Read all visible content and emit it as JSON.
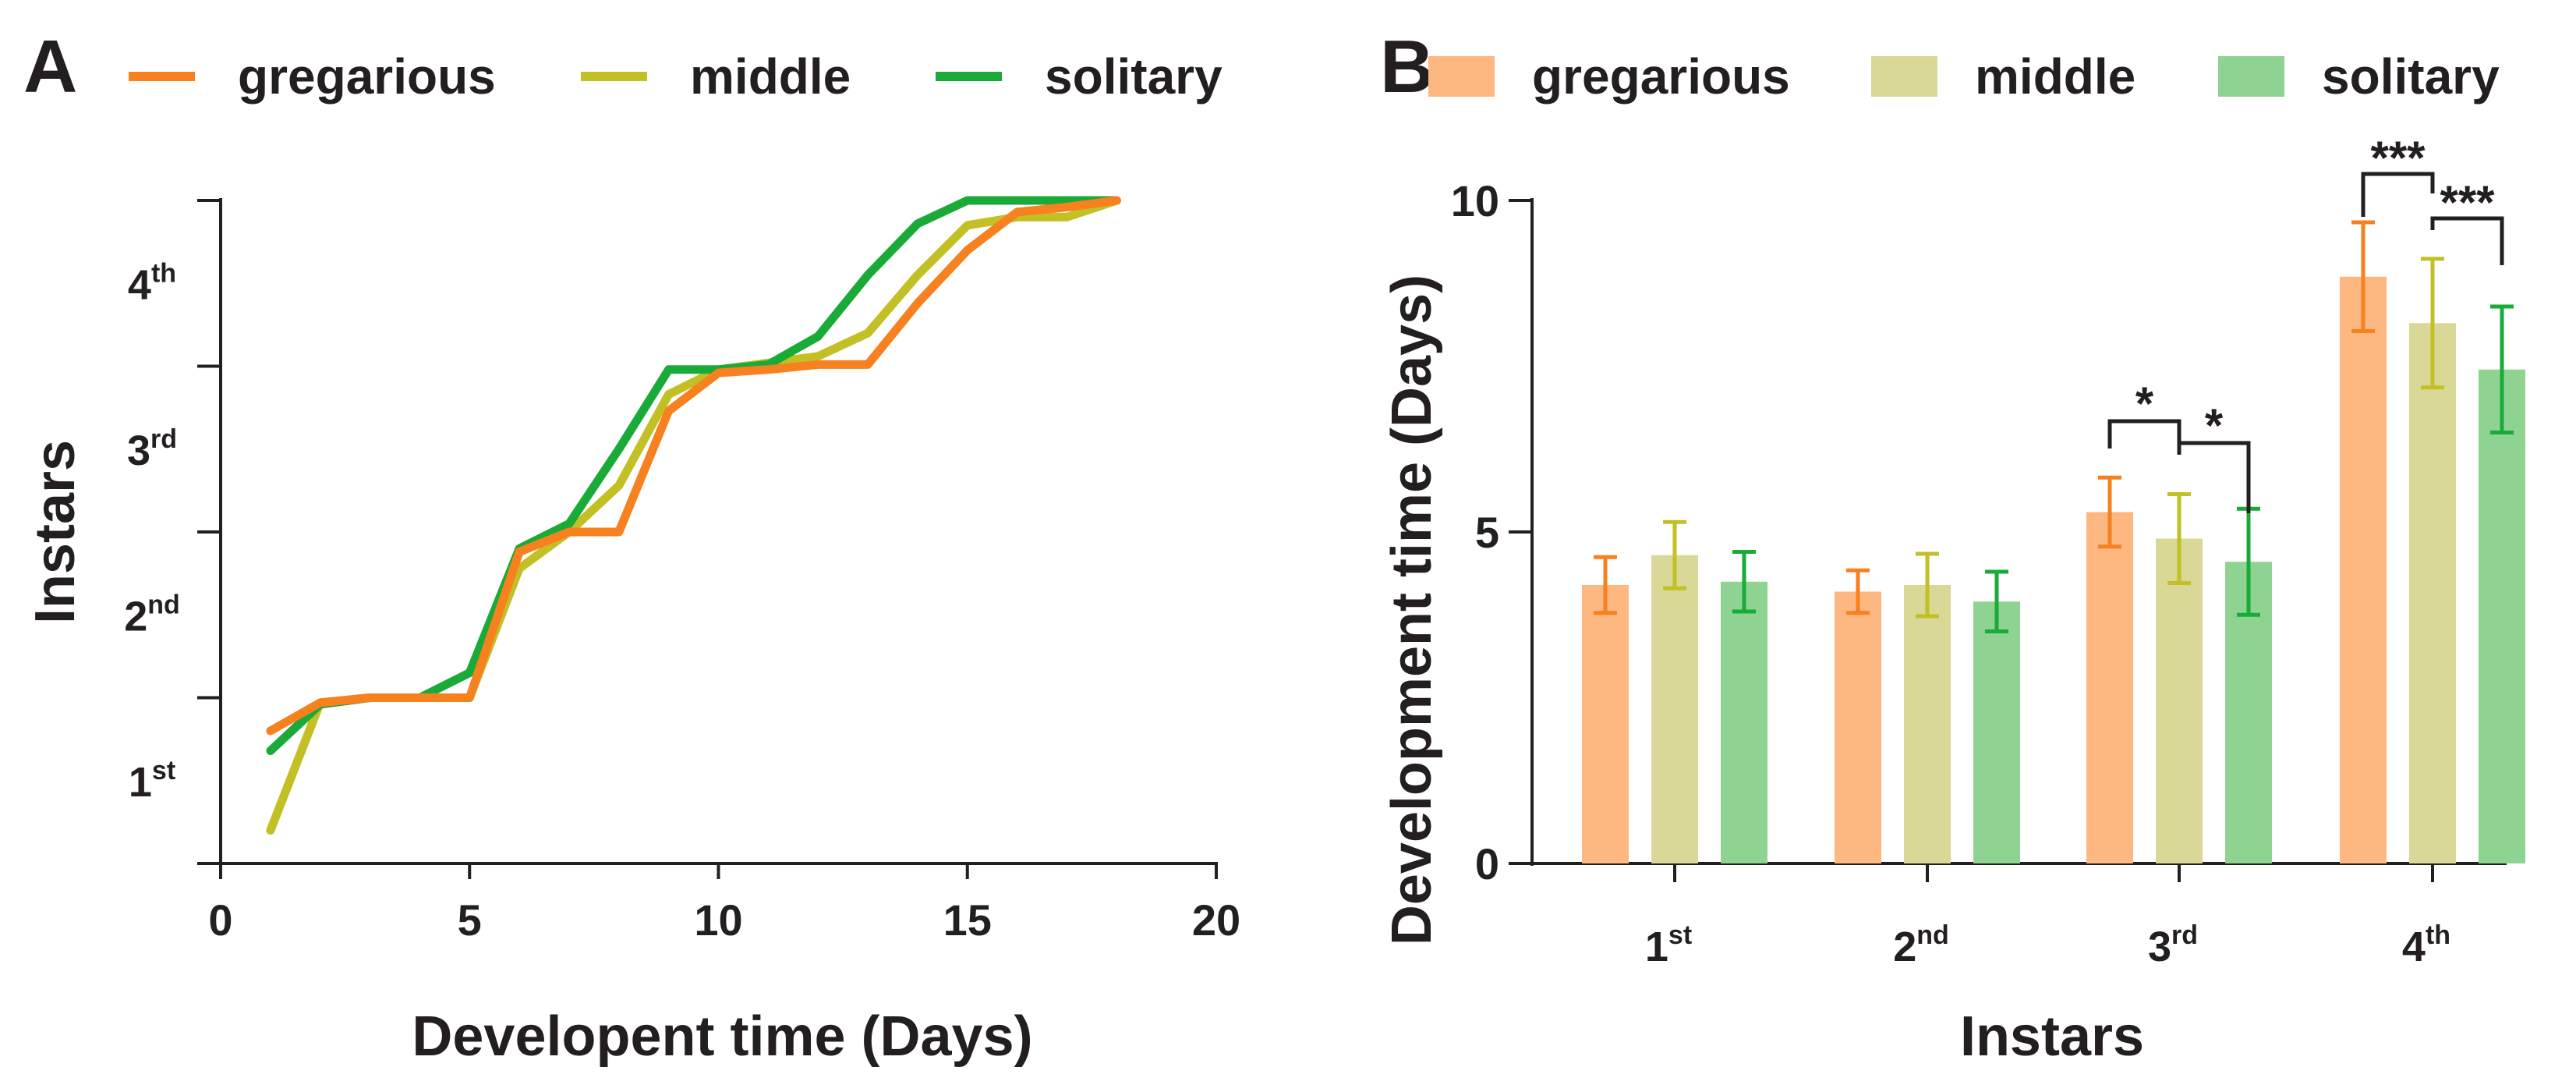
{
  "chart_data": [
    {
      "panel": "A",
      "type": "line",
      "xlabel": "Developent time (Days)",
      "ylabel": "Instars",
      "xlim": [
        0,
        20
      ],
      "xticks": [
        "0",
        "5",
        "10",
        "15",
        "20"
      ],
      "ylim": [
        0,
        4
      ],
      "yticks": [
        {
          "base": "1",
          "sup": "st"
        },
        {
          "base": "2",
          "sup": "nd"
        },
        {
          "base": "3",
          "sup": "rd"
        },
        {
          "base": "4",
          "sup": "th"
        }
      ],
      "legend_position": "top",
      "series": [
        {
          "name": "gregarious",
          "color": "#f7801f",
          "points": [
            [
              1,
              0.8
            ],
            [
              2,
              0.97
            ],
            [
              3,
              1.0
            ],
            [
              4,
              1.0
            ],
            [
              5,
              1.0
            ],
            [
              6,
              1.88
            ],
            [
              7,
              2.0
            ],
            [
              8,
              2.0
            ],
            [
              9,
              2.73
            ],
            [
              10,
              2.96
            ],
            [
              11,
              2.98
            ],
            [
              12,
              3.01
            ],
            [
              13,
              3.01
            ],
            [
              14,
              3.38
            ],
            [
              15,
              3.7
            ],
            [
              16,
              3.93
            ],
            [
              17,
              3.96
            ],
            [
              18,
              4.0
            ]
          ]
        },
        {
          "name": "middle",
          "color": "#c2c025",
          "points": [
            [
              1,
              0.2
            ],
            [
              2,
              0.97
            ],
            [
              3,
              1.0
            ],
            [
              4,
              1.0
            ],
            [
              5,
              1.0
            ],
            [
              6,
              1.78
            ],
            [
              7,
              2.0
            ],
            [
              8,
              2.28
            ],
            [
              9,
              2.83
            ],
            [
              10,
              2.98
            ],
            [
              11,
              3.02
            ],
            [
              12,
              3.06
            ],
            [
              13,
              3.2
            ],
            [
              14,
              3.55
            ],
            [
              15,
              3.85
            ],
            [
              16,
              3.9
            ],
            [
              17,
              3.9
            ],
            [
              18,
              4.0
            ]
          ]
        },
        {
          "name": "solitary",
          "color": "#1aaa38",
          "points": [
            [
              1,
              0.68
            ],
            [
              2,
              0.96
            ],
            [
              3,
              1.0
            ],
            [
              4,
              1.0
            ],
            [
              5,
              1.15
            ],
            [
              6,
              1.9
            ],
            [
              7,
              2.05
            ],
            [
              8,
              2.5
            ],
            [
              9,
              2.98
            ],
            [
              10,
              2.98
            ],
            [
              11,
              3.01
            ],
            [
              12,
              3.18
            ],
            [
              13,
              3.55
            ],
            [
              14,
              3.86
            ],
            [
              15,
              4.0
            ],
            [
              16,
              4.0
            ],
            [
              17,
              4.0
            ],
            [
              18,
              4.0
            ]
          ]
        }
      ]
    },
    {
      "panel": "B",
      "type": "bar",
      "xlabel": "Instars",
      "ylabel": "Development time (Days)",
      "ylim": [
        0,
        10
      ],
      "yticks": [
        "0",
        "5",
        "10"
      ],
      "categories": [
        {
          "base": "1",
          "sup": "st"
        },
        {
          "base": "2",
          "sup": "nd"
        },
        {
          "base": "3",
          "sup": "rd"
        },
        {
          "base": "4",
          "sup": "th"
        }
      ],
      "legend_position": "top",
      "series": [
        {
          "name": "gregarious",
          "color": "#fdb881",
          "error_color": "#f7801f",
          "values": [
            4.2,
            4.1,
            5.3,
            8.85
          ],
          "errors": [
            0.42,
            0.32,
            0.52,
            0.82
          ]
        },
        {
          "name": "middle",
          "color": "#d9d896",
          "error_color": "#c2c025",
          "values": [
            4.65,
            4.2,
            4.9,
            8.15
          ],
          "errors": [
            0.5,
            0.47,
            0.67,
            0.97
          ]
        },
        {
          "name": "solitary",
          "color": "#8fd392",
          "error_color": "#1aaa38",
          "values": [
            4.25,
            3.95,
            4.55,
            7.45
          ],
          "errors": [
            0.45,
            0.45,
            0.8,
            0.95
          ]
        }
      ],
      "significance": [
        {
          "category": 2,
          "from": 0,
          "to": 1,
          "label": "*"
        },
        {
          "category": 2,
          "from": 1,
          "to": 2,
          "label": "*"
        },
        {
          "category": 3,
          "from": 0,
          "to": 1,
          "label": "***"
        },
        {
          "category": 3,
          "from": 1,
          "to": 2,
          "label": "***"
        }
      ]
    }
  ]
}
